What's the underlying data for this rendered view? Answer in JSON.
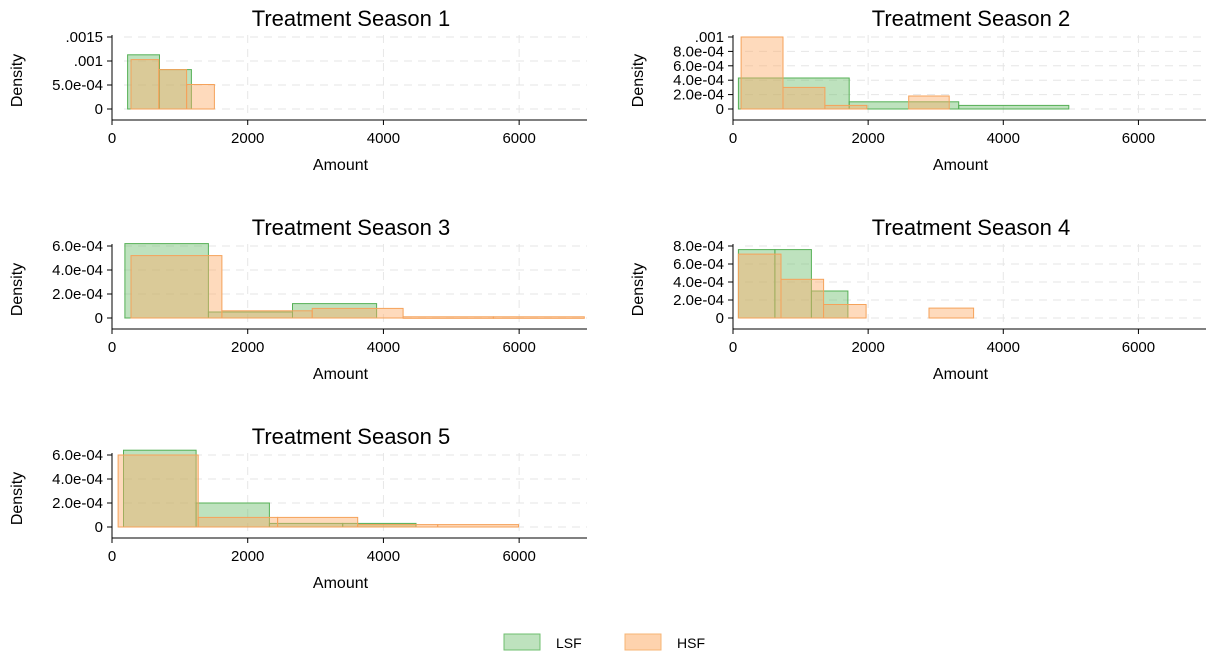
{
  "chart_data": [
    {
      "type": "histogram",
      "title": "Treatment Season 1",
      "xlabel": "Amount",
      "ylabel": "Density",
      "xlim": [
        0,
        7000
      ],
      "ylim": [
        0,
        0.00175
      ],
      "xticks": [
        0,
        2000,
        4000,
        6000
      ],
      "xtick_labels": [
        "0",
        "2000",
        "4000",
        "6000"
      ],
      "yticks": [
        0,
        0.0005,
        0.001,
        0.0015
      ],
      "ytick_labels": [
        "0",
        "5.0e-04",
        ".001",
        ".0015"
      ],
      "grid": true,
      "series": [
        {
          "name": "LSF",
          "bins": [
            {
              "x0": 230,
              "x1": 700,
              "density": 0.00113
            },
            {
              "x0": 700,
              "x1": 1170,
              "density": 0.00082
            }
          ]
        },
        {
          "name": "HSF",
          "bins": [
            {
              "x0": 280,
              "x1": 690,
              "density": 0.00103
            },
            {
              "x0": 690,
              "x1": 1100,
              "density": 0.00082
            },
            {
              "x0": 1100,
              "x1": 1510,
              "density": 0.00051
            }
          ]
        }
      ]
    },
    {
      "type": "histogram",
      "title": "Treatment Season 2",
      "xlabel": "Amount",
      "ylabel": "Density",
      "xlim": [
        0,
        7000
      ],
      "ylim": [
        0,
        0.00115
      ],
      "xticks": [
        0,
        2000,
        4000,
        6000
      ],
      "xtick_labels": [
        "0",
        "2000",
        "4000",
        "6000"
      ],
      "yticks": [
        0,
        0.0002,
        0.0004,
        0.0006,
        0.0008,
        0.001
      ],
      "ytick_labels": [
        "0",
        "2.0e-04",
        "4.0e-04",
        "6.0e-04",
        "8.0e-04",
        ".001"
      ],
      "grid": true,
      "series": [
        {
          "name": "LSF",
          "bins": [
            {
              "x0": 80,
              "x1": 1720,
              "density": 0.00043
            },
            {
              "x0": 1720,
              "x1": 3340,
              "density": 0.0001
            },
            {
              "x0": 3340,
              "x1": 4970,
              "density": 5e-05
            }
          ]
        },
        {
          "name": "HSF",
          "bins": [
            {
              "x0": 120,
              "x1": 740,
              "density": 0.001
            },
            {
              "x0": 740,
              "x1": 1360,
              "density": 0.0003
            },
            {
              "x0": 1360,
              "x1": 1980,
              "density": 5e-05
            },
            {
              "x0": 1980,
              "x1": 2600,
              "density": 0
            },
            {
              "x0": 2600,
              "x1": 3200,
              "density": 0.00018
            }
          ]
        }
      ]
    },
    {
      "type": "histogram",
      "title": "Treatment Season 3",
      "xlabel": "Amount",
      "ylabel": "Density",
      "xlim": [
        0,
        7000
      ],
      "ylim": [
        0,
        0.00073
      ],
      "xticks": [
        0,
        2000,
        4000,
        6000
      ],
      "xtick_labels": [
        "0",
        "2000",
        "4000",
        "6000"
      ],
      "yticks": [
        0,
        0.0002,
        0.0004,
        0.0006
      ],
      "ytick_labels": [
        "0",
        "2.0e-04",
        "4.0e-04",
        "6.0e-04"
      ],
      "grid": true,
      "series": [
        {
          "name": "LSF",
          "bins": [
            {
              "x0": 190,
              "x1": 1420,
              "density": 0.00062
            },
            {
              "x0": 1420,
              "x1": 2660,
              "density": 5e-05
            },
            {
              "x0": 2660,
              "x1": 3900,
              "density": 0.00012
            }
          ]
        },
        {
          "name": "HSF",
          "bins": [
            {
              "x0": 280,
              "x1": 1620,
              "density": 0.00052
            },
            {
              "x0": 1620,
              "x1": 2950,
              "density": 6e-05
            },
            {
              "x0": 2950,
              "x1": 4290,
              "density": 8e-05
            },
            {
              "x0": 4290,
              "x1": 5620,
              "density": 1e-05
            },
            {
              "x0": 5620,
              "x1": 6960,
              "density": 1e-05
            }
          ]
        }
      ]
    },
    {
      "type": "histogram",
      "title": "Treatment Season 4",
      "xlabel": "Amount",
      "ylabel": "Density",
      "xlim": [
        0,
        7000
      ],
      "ylim": [
        0,
        0.00095
      ],
      "xticks": [
        0,
        2000,
        4000,
        6000
      ],
      "xtick_labels": [
        "0",
        "2000",
        "4000",
        "6000"
      ],
      "yticks": [
        0,
        0.0002,
        0.0004,
        0.0006,
        0.0008
      ],
      "ytick_labels": [
        "0",
        "2.0e-04",
        "4.0e-04",
        "6.0e-04",
        "8.0e-04"
      ],
      "grid": true,
      "series": [
        {
          "name": "LSF",
          "bins": [
            {
              "x0": 80,
              "x1": 620,
              "density": 0.00076
            },
            {
              "x0": 620,
              "x1": 1160,
              "density": 0.00076
            },
            {
              "x0": 1160,
              "x1": 1700,
              "density": 0.0003
            }
          ]
        },
        {
          "name": "HSF",
          "bins": [
            {
              "x0": 80,
              "x1": 710,
              "density": 0.00071
            },
            {
              "x0": 710,
              "x1": 1340,
              "density": 0.00043
            },
            {
              "x0": 1340,
              "x1": 1970,
              "density": 0.00015
            },
            {
              "x0": 1970,
              "x1": 2600,
              "density": 0
            },
            {
              "x0": 2900,
              "x1": 3560,
              "density": 0.00011
            }
          ]
        }
      ]
    },
    {
      "type": "histogram",
      "title": "Treatment Season 5",
      "xlabel": "Amount",
      "ylabel": "Density",
      "xlim": [
        0,
        7000
      ],
      "ylim": [
        0,
        0.00073
      ],
      "xticks": [
        0,
        2000,
        4000,
        6000
      ],
      "xtick_labels": [
        "0",
        "2000",
        "4000",
        "6000"
      ],
      "yticks": [
        0,
        0.0002,
        0.0004,
        0.0006
      ],
      "ytick_labels": [
        "0",
        "2.0e-04",
        "4.0e-04",
        "6.0e-04"
      ],
      "grid": true,
      "series": [
        {
          "name": "LSF",
          "bins": [
            {
              "x0": 170,
              "x1": 1240,
              "density": 0.00064
            },
            {
              "x0": 1240,
              "x1": 2320,
              "density": 0.0002
            },
            {
              "x0": 2320,
              "x1": 3400,
              "density": 3e-05
            },
            {
              "x0": 3400,
              "x1": 4480,
              "density": 3e-05
            }
          ]
        },
        {
          "name": "HSF",
          "bins": [
            {
              "x0": 90,
              "x1": 1270,
              "density": 0.0006
            },
            {
              "x0": 1270,
              "x1": 2440,
              "density": 8e-05
            },
            {
              "x0": 2440,
              "x1": 3620,
              "density": 8e-05
            },
            {
              "x0": 3620,
              "x1": 4800,
              "density": 2e-05
            },
            {
              "x0": 4800,
              "x1": 5990,
              "density": 2e-05
            }
          ]
        }
      ]
    }
  ],
  "legend": {
    "position": "bottom",
    "items": [
      {
        "label": "LSF",
        "fill": "#a8d5a8",
        "stroke": "#6fbf6f"
      },
      {
        "label": "HSF",
        "fill": "#fdd0a5",
        "stroke": "#f7b574"
      }
    ]
  },
  "colors": {
    "lsf_fill": "#6fbf6f",
    "lsf_stroke": "#55b055",
    "hsf_fill": "#fdae6b",
    "hsf_stroke": "#f5a25a",
    "grid": "#e6e6e6",
    "axis": "#000000"
  }
}
